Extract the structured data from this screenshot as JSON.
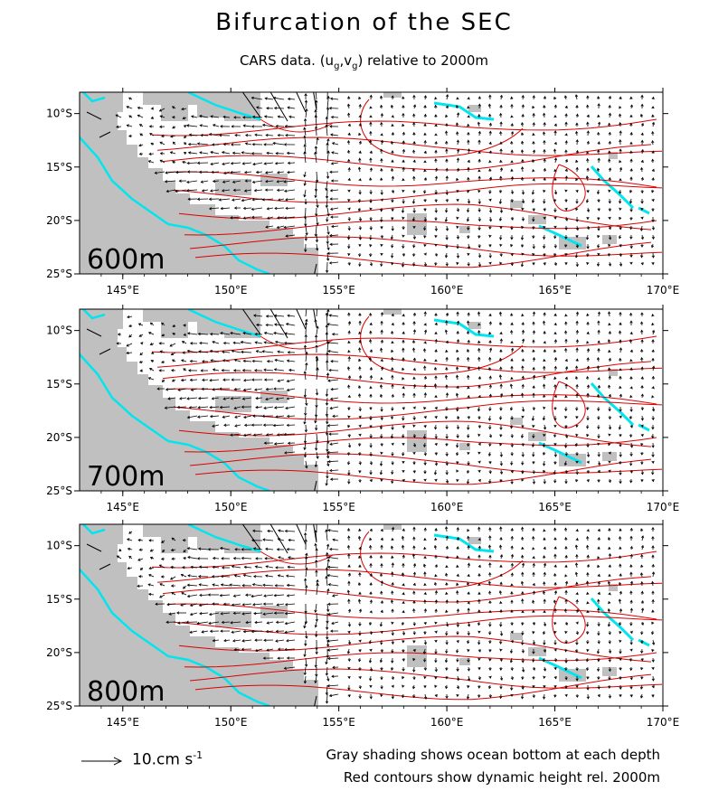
{
  "title": "Bifurcation of the SEC",
  "subtitle": {
    "prefix": "CARS data. (u",
    "sub1": "g",
    "mid": ",v",
    "sub2": "g",
    "suffix": ") relative to 2000m"
  },
  "panels": [
    {
      "depth_label": "600m"
    },
    {
      "depth_label": "700m"
    },
    {
      "depth_label": "800m"
    }
  ],
  "axes": {
    "lon_ticks": [
      "145°E",
      "150°E",
      "155°E",
      "160°E",
      "165°E",
      "170°E"
    ],
    "lat_ticks": [
      "10°S",
      "15°S",
      "20°S",
      "25°S"
    ],
    "lon_range": [
      143,
      170
    ],
    "lat_range": [
      -25,
      -8
    ]
  },
  "legend": {
    "scale_value": "10.cm s",
    "scale_exp": "-1"
  },
  "notes": {
    "bottom_shading": "Gray shading shows ocean bottom at each depth",
    "contours": "Red contours show dynamic height rel. 2000m"
  },
  "colors": {
    "land": "#c0c0c0",
    "coast": "#00e5ee",
    "contour": "#dd0000",
    "arrow": "#000000"
  }
}
